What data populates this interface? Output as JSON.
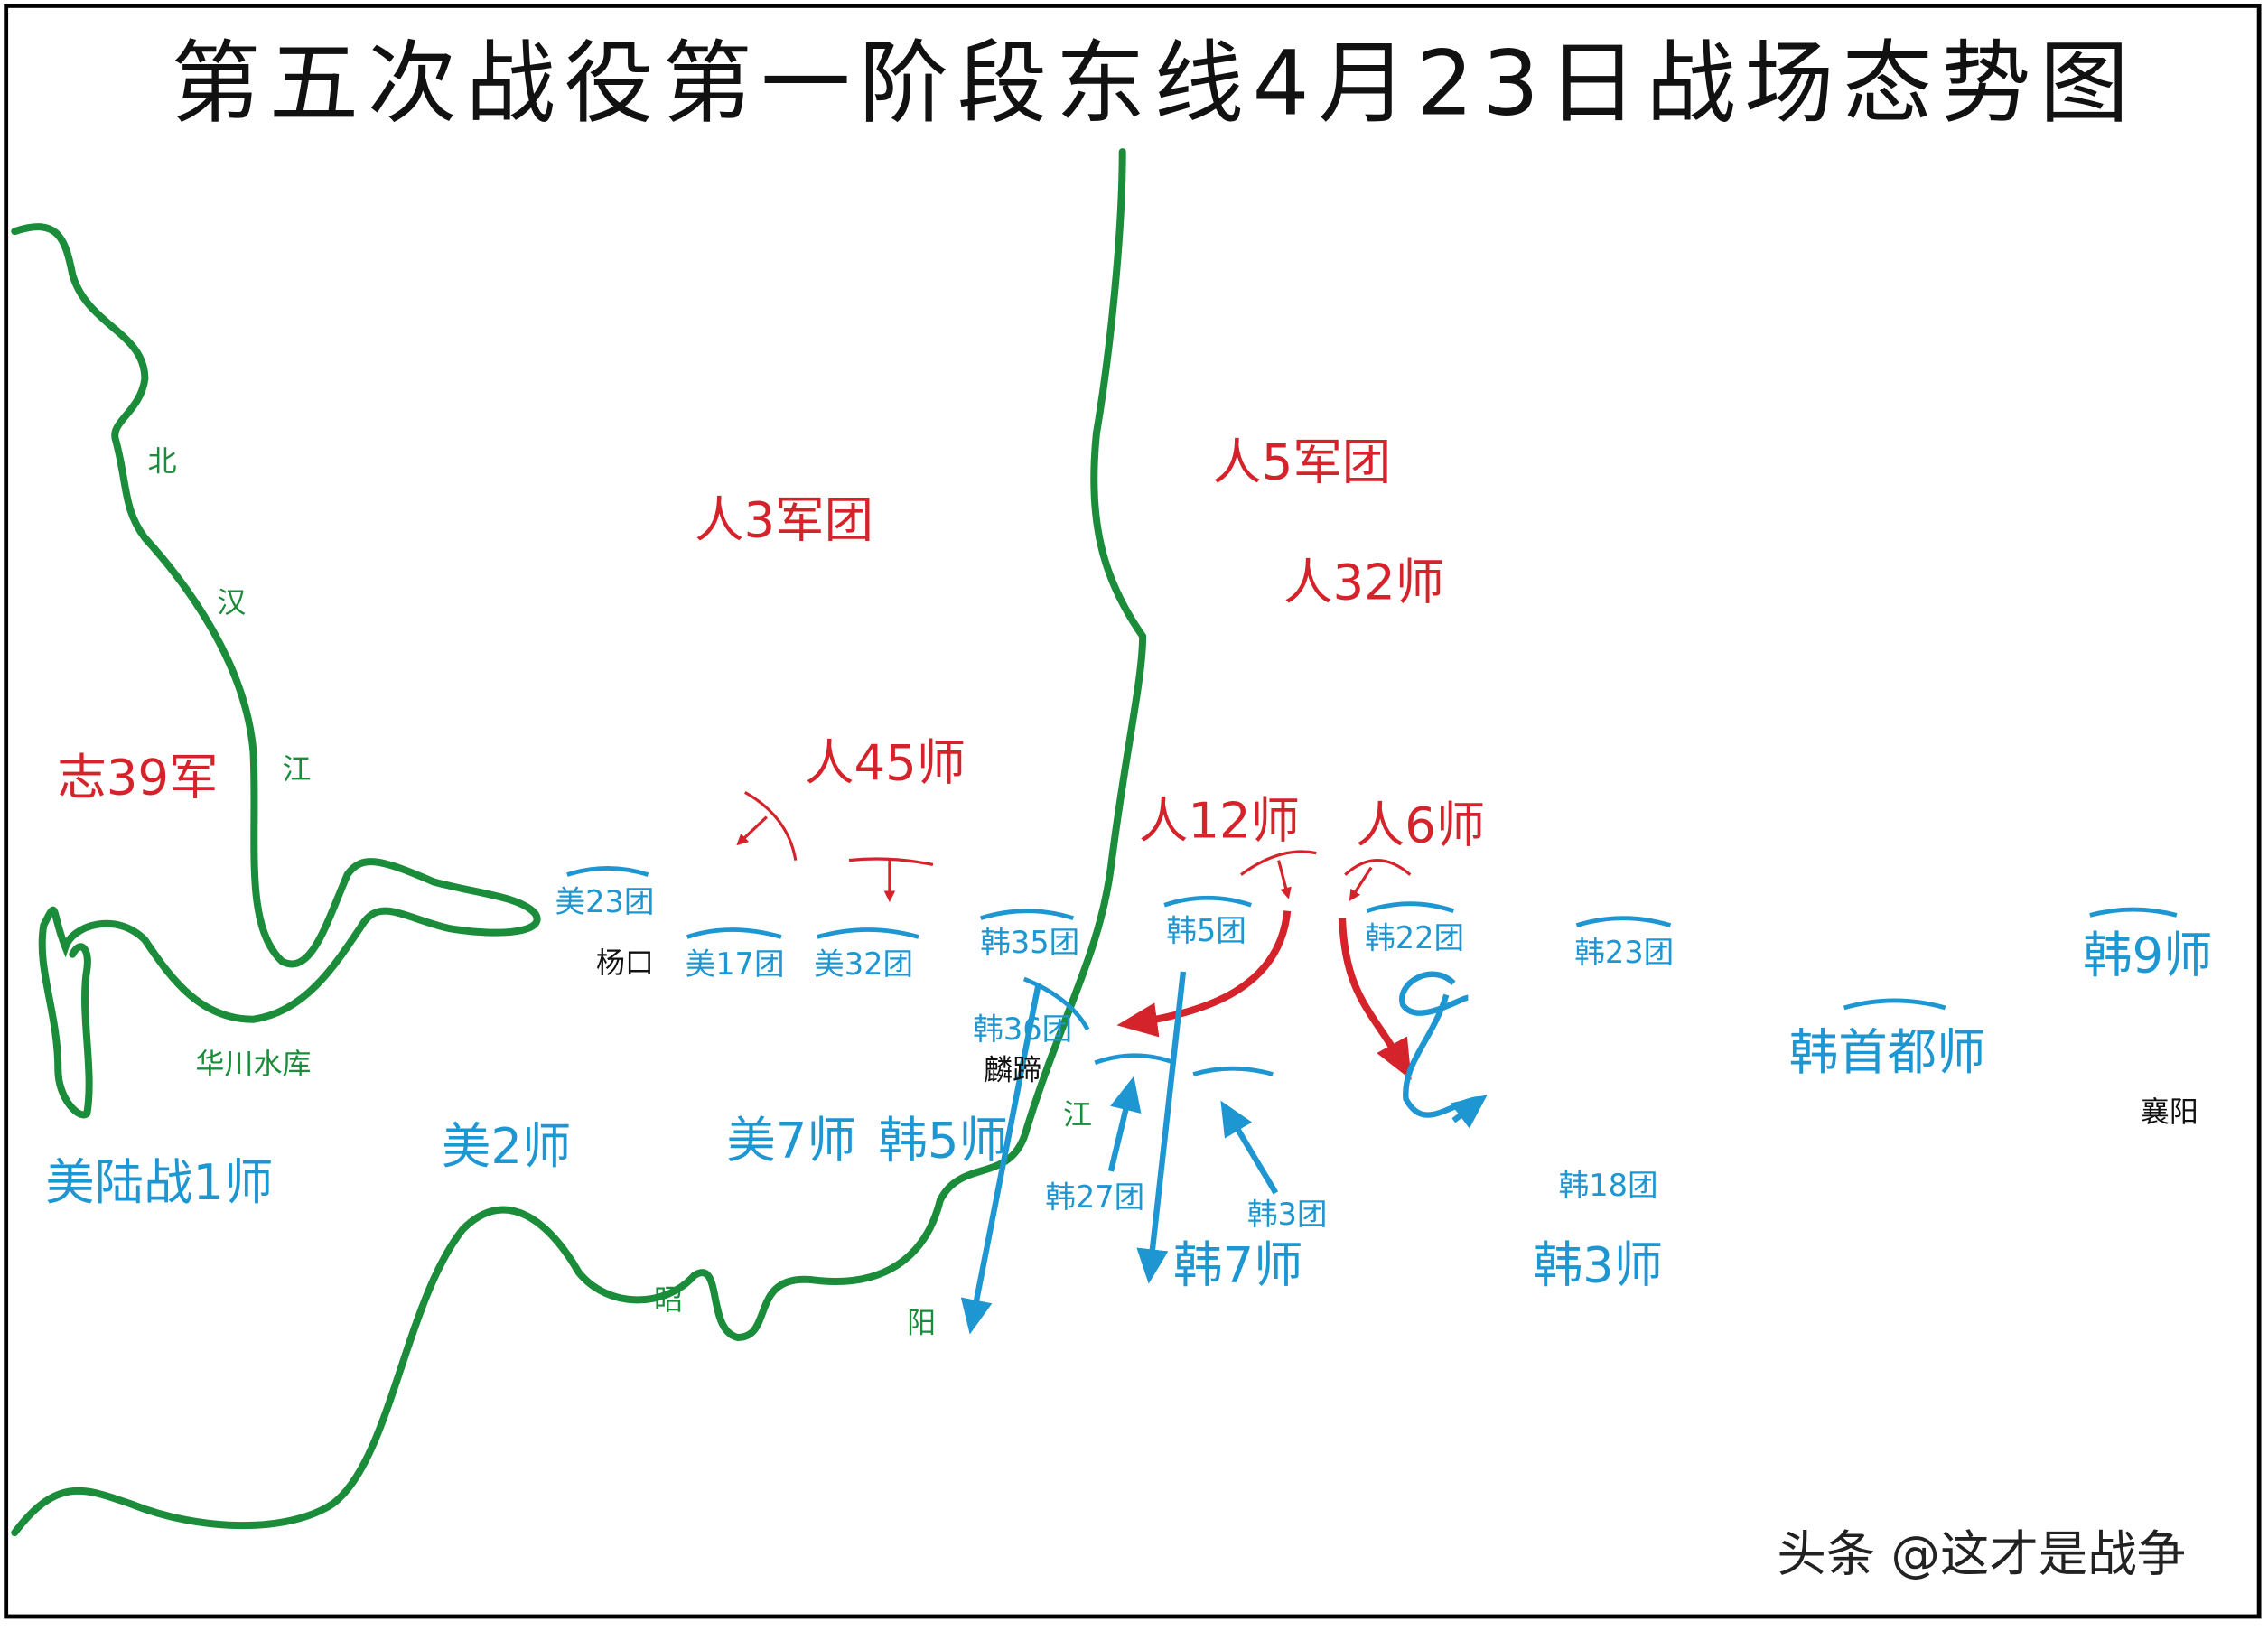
{
  "title": "第五次战役第一阶段东线4月23日战场态势图",
  "rivers": {
    "bukhan": [
      "北",
      "汉",
      "江"
    ],
    "soyang": [
      "昭",
      "阳",
      "江"
    ]
  },
  "places": {
    "reservoir": "华川水库",
    "yanggu": "杨口",
    "inje": "麟蹄",
    "yangyang": "襄阳"
  },
  "enemy_forces": [
    "志39军",
    "人3军团",
    "人45师",
    "人5军团",
    "人32师",
    "人12师",
    "人6师"
  ],
  "un_divisions": [
    "美陆战1师",
    "美2师",
    "美7师",
    "韩5师",
    "韩9师",
    "韩首都师",
    "韩7师",
    "韩3师"
  ],
  "un_regiments": [
    "美23团",
    "美17团",
    "美32团",
    "韩35团",
    "韩36团",
    "韩5团",
    "韩22团",
    "韩23团",
    "韩27团",
    "韩3团",
    "韩18团"
  ],
  "watermark": "头条 @这才是战争"
}
